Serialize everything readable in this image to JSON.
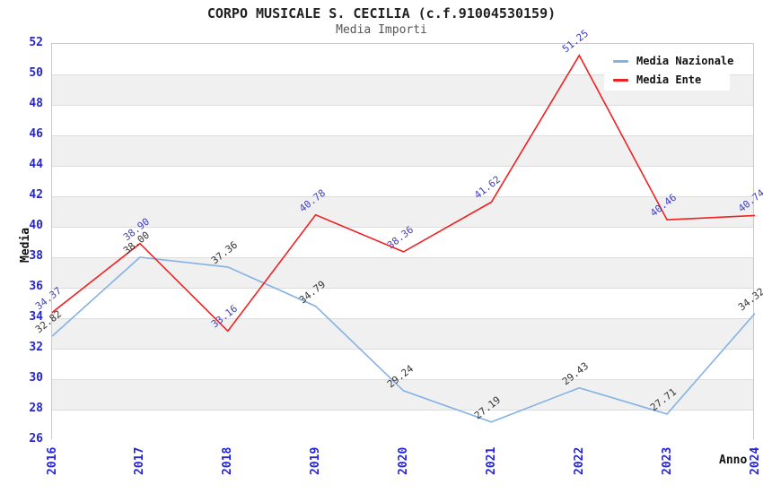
{
  "chart_data": {
    "type": "line",
    "title": "CORPO MUSICALE S. CECILIA (c.f.91004530159)",
    "subtitle": "Media Importi",
    "x": [
      "2016",
      "2017",
      "2018",
      "2019",
      "2020",
      "2021",
      "2022",
      "2023",
      "2024"
    ],
    "series": [
      {
        "name": "Media Nazionale",
        "color": "#85b2e3",
        "label_color": "#333333",
        "values": [
          32.82,
          38.0,
          37.36,
          34.79,
          29.24,
          27.19,
          29.43,
          27.71,
          34.32
        ]
      },
      {
        "name": "Media Ente",
        "color": "#f02020",
        "label_color": "#3f3fc3",
        "values": [
          34.37,
          38.9,
          33.16,
          40.78,
          38.36,
          41.62,
          51.25,
          40.46,
          40.74
        ]
      }
    ],
    "xlabel": "Anno",
    "ylabel": "Media",
    "ylim": [
      26,
      52
    ],
    "ytick_step": 2,
    "tick_label_color": "#2525d6",
    "band_color": "#f0f0f0",
    "grid": "horizontal-bands",
    "legend_position": "top-right"
  }
}
